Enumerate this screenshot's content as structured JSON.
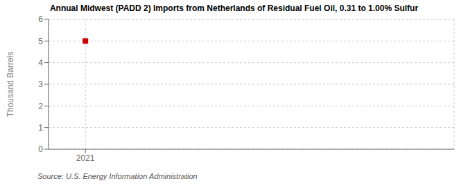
{
  "chart_data": {
    "type": "scatter",
    "title": "Annual Midwest (PADD 2) Imports from Netherlands of Residual Fuel Oil, 0.31 to 1.00% Sulfur",
    "ylabel": "Thousand Barrels",
    "annotations": [
      "Source: U.S. Energy Information Administration"
    ],
    "x": [
      2021
    ],
    "values": [
      5
    ],
    "color": "#cc0000",
    "marker": "square",
    "xlim": [
      2020.6,
      2025.0
    ],
    "ylim": [
      0,
      6
    ],
    "xticks": [
      2021
    ],
    "yticks": [
      0,
      1,
      2,
      3,
      4,
      5,
      6
    ],
    "grid": true
  }
}
